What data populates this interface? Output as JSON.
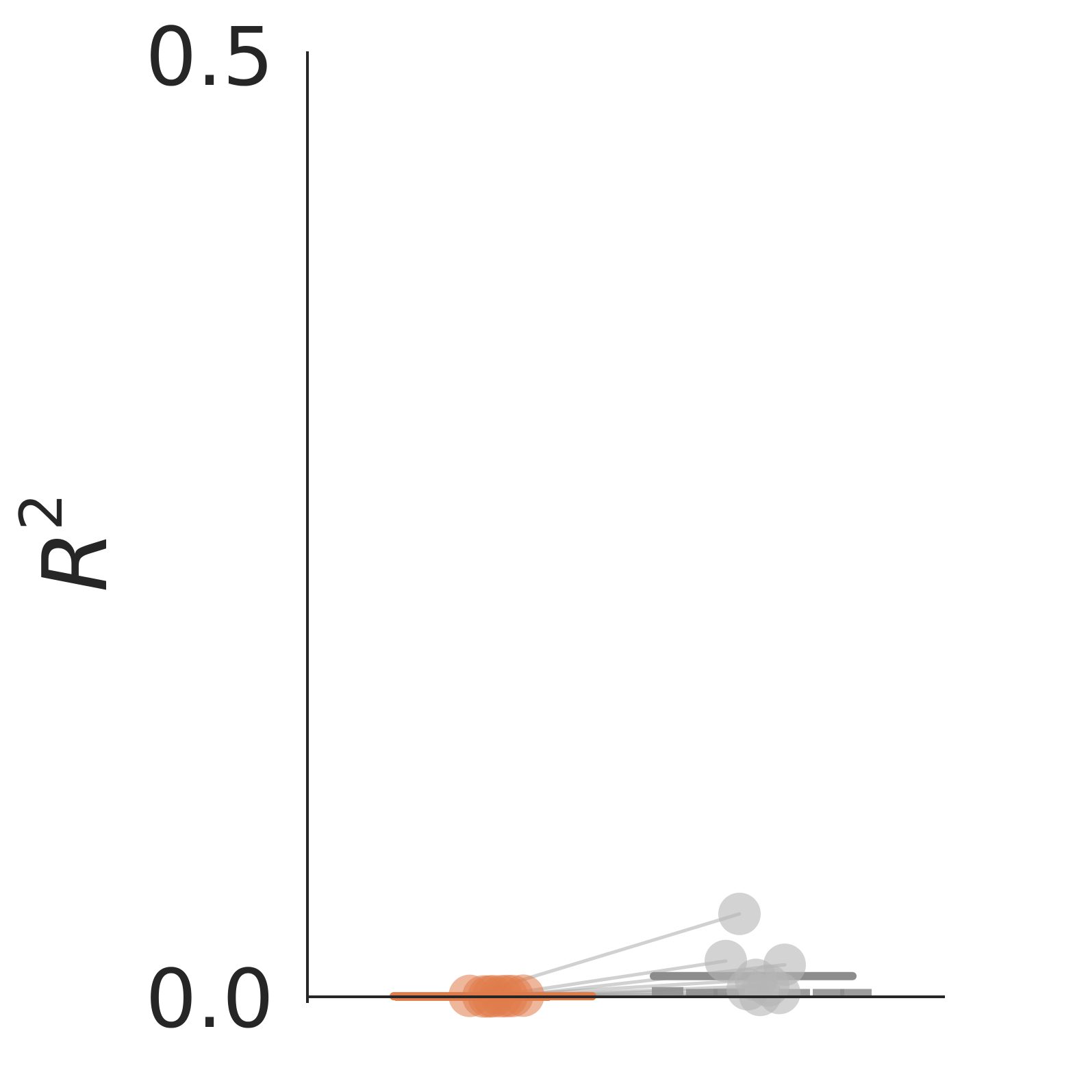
{
  "chart_data": {
    "type": "scatter",
    "ylabel": "R",
    "ylabel_superscript": "2",
    "ylim": [
      0.0,
      0.5
    ],
    "yticks": [
      {
        "value": 0.0,
        "label": "0.0"
      },
      {
        "value": 0.5,
        "label": "0.5"
      }
    ],
    "grid": false,
    "groups": [
      {
        "color": "#E07B4A",
        "point_values": [
          0.0005,
          0.0003,
          0.0004,
          0.0002,
          0.0006,
          0.0003,
          0.0002,
          0.0004
        ],
        "mean": 0.0003,
        "individual_markers": [
          0.0,
          0.0,
          0.0,
          0.0,
          0.0
        ]
      },
      {
        "color": "#B0B0B0",
        "point_values": [
          0.044,
          0.019,
          0.017,
          0.009,
          0.006,
          0.004,
          0.002,
          0.001
        ],
        "mean": 0.011,
        "individual_markers": [
          0.003,
          0.002,
          0.002,
          0.002,
          0.002,
          0.002
        ]
      }
    ],
    "pairs": [
      [
        0.0005,
        0.044
      ],
      [
        0.0003,
        0.019
      ],
      [
        0.0004,
        0.017
      ],
      [
        0.0002,
        0.009
      ],
      [
        0.0006,
        0.006
      ],
      [
        0.0003,
        0.004
      ],
      [
        0.0002,
        0.002
      ],
      [
        0.0004,
        0.001
      ]
    ]
  }
}
